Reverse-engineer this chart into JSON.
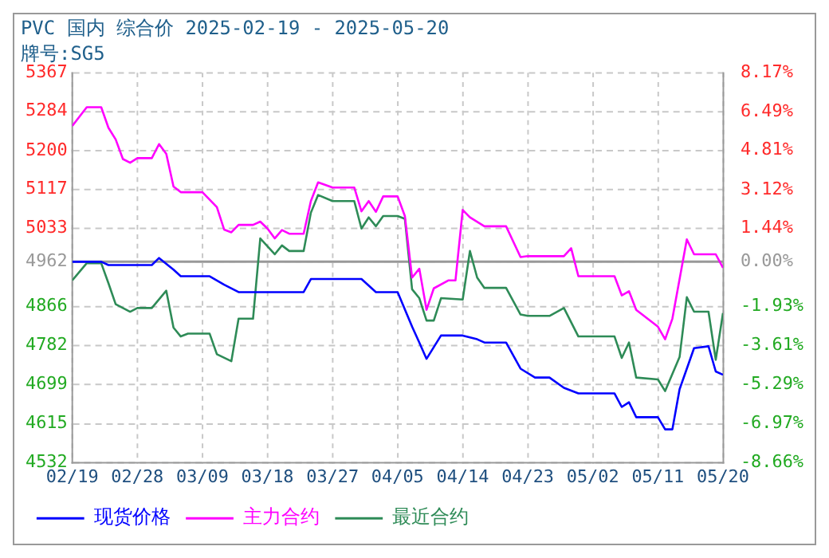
{
  "chart_data": {
    "type": "line",
    "title": "PVC 国内 综合价 2025-02-19 - 2025-05-20",
    "subtitle": "牌号:SG5",
    "xlim": [
      "2025-02-19",
      "2025-05-20"
    ],
    "xticks": [
      {
        "value": "2025-02-19",
        "label": "02/19"
      },
      {
        "value": "2025-02-28",
        "label": "02/28"
      },
      {
        "value": "2025-03-09",
        "label": "03/09"
      },
      {
        "value": "2025-03-18",
        "label": "03/18"
      },
      {
        "value": "2025-03-27",
        "label": "03/27"
      },
      {
        "value": "2025-04-05",
        "label": "04/05"
      },
      {
        "value": "2025-04-14",
        "label": "04/14"
      },
      {
        "value": "2025-04-23",
        "label": "04/23"
      },
      {
        "value": "2025-05-02",
        "label": "05/02"
      },
      {
        "value": "2025-05-11",
        "label": "05/11"
      },
      {
        "value": "2025-05-20",
        "label": "05/20"
      }
    ],
    "ylim": [
      4532,
      5367
    ],
    "yticks": [
      4532,
      4615,
      4699,
      4782,
      4866,
      4962,
      5033,
      5117,
      5200,
      5284,
      5367
    ],
    "y2lim": [
      -8.66,
      8.17
    ],
    "y2ticks": [
      {
        "value": -8.66,
        "label": "-8.66%"
      },
      {
        "value": -6.97,
        "label": "-6.97%"
      },
      {
        "value": -5.29,
        "label": "-5.29%"
      },
      {
        "value": -3.61,
        "label": "-3.61%"
      },
      {
        "value": -1.93,
        "label": "-1.93%"
      },
      {
        "value": 0,
        "label": "0.00%"
      },
      {
        "value": 1.44,
        "label": "1.44%"
      },
      {
        "value": 3.12,
        "label": "3.12%"
      },
      {
        "value": 4.81,
        "label": "4.81%"
      },
      {
        "value": 6.49,
        "label": "6.49%"
      },
      {
        "value": 8.17,
        "label": "8.17%"
      }
    ],
    "ref_lines": [
      {
        "axis": "y",
        "value": 4962,
        "color": "#999999"
      }
    ],
    "grid": true,
    "legend": "bottom left",
    "marker": "none",
    "line_style": "solid",
    "series": [
      {
        "name": "现货价格",
        "color": "#0000ff",
        "x": [
          "2025-02-19",
          "2025-02-23",
          "2025-02-24",
          "2025-03-02",
          "2025-03-03",
          "2025-03-05",
          "2025-03-06",
          "2025-03-10",
          "2025-03-12",
          "2025-03-14",
          "2025-03-23",
          "2025-03-24",
          "2025-03-31",
          "2025-04-02",
          "2025-04-05",
          "2025-04-07",
          "2025-04-08",
          "2025-04-09",
          "2025-04-11",
          "2025-04-14",
          "2025-04-16",
          "2025-04-17",
          "2025-04-20",
          "2025-04-22",
          "2025-04-24",
          "2025-04-26",
          "2025-04-28",
          "2025-04-30",
          "2025-05-05",
          "2025-05-06",
          "2025-05-07",
          "2025-05-08",
          "2025-05-11",
          "2025-05-12",
          "2025-05-13",
          "2025-05-14",
          "2025-05-16",
          "2025-05-18",
          "2025-05-19",
          "2025-05-20"
        ],
        "values": [
          4962,
          4962,
          4955,
          4955,
          4970,
          4945,
          4931,
          4931,
          4913,
          4897,
          4897,
          4925,
          4925,
          4897,
          4897,
          4823,
          4789,
          4754,
          4804,
          4804,
          4796,
          4789,
          4789,
          4733,
          4714,
          4714,
          4692,
          4680,
          4680,
          4651,
          4661,
          4629,
          4629,
          4603,
          4603,
          4689,
          4777,
          4781,
          4727,
          4720
        ]
      },
      {
        "name": "主力合约",
        "color": "#ff00ff",
        "x": [
          "2025-02-19",
          "2025-02-21",
          "2025-02-23",
          "2025-02-24",
          "2025-02-25",
          "2025-02-26",
          "2025-02-27",
          "2025-02-28",
          "2025-03-02",
          "2025-03-03",
          "2025-03-04",
          "2025-03-05",
          "2025-03-06",
          "2025-03-09",
          "2025-03-11",
          "2025-03-12",
          "2025-03-13",
          "2025-03-14",
          "2025-03-16",
          "2025-03-17",
          "2025-03-18",
          "2025-03-19",
          "2025-03-20",
          "2025-03-21",
          "2025-03-23",
          "2025-03-24",
          "2025-03-25",
          "2025-03-27",
          "2025-03-30",
          "2025-03-31",
          "2025-04-01",
          "2025-04-02",
          "2025-04-03",
          "2025-04-05",
          "2025-04-06",
          "2025-04-07",
          "2025-04-08",
          "2025-04-09",
          "2025-04-10",
          "2025-04-12",
          "2025-04-13",
          "2025-04-14",
          "2025-04-15",
          "2025-04-17",
          "2025-04-20",
          "2025-04-22",
          "2025-04-23",
          "2025-04-28",
          "2025-04-29",
          "2025-04-30",
          "2025-05-05",
          "2025-05-06",
          "2025-05-07",
          "2025-05-08",
          "2025-05-11",
          "2025-05-12",
          "2025-05-13",
          "2025-05-15",
          "2025-05-16",
          "2025-05-19",
          "2025-05-20"
        ],
        "values": [
          5253,
          5293,
          5293,
          5249,
          5224,
          5182,
          5174,
          5184,
          5184,
          5214,
          5193,
          5123,
          5111,
          5111,
          5079,
          5031,
          5025,
          5041,
          5041,
          5048,
          5033,
          5012,
          5030,
          5022,
          5022,
          5092,
          5132,
          5121,
          5121,
          5070,
          5092,
          5069,
          5102,
          5102,
          5060,
          4928,
          4947,
          4859,
          4905,
          4922,
          4922,
          5073,
          5057,
          5038,
          5038,
          4972,
          4974,
          4974,
          4991,
          4931,
          4931,
          4890,
          4899,
          4859,
          4823,
          4796,
          4840,
          5010,
          4978,
          4978,
          4949
        ]
      },
      {
        "name": "最近合约",
        "color": "#2e8b57",
        "x": [
          "2025-02-19",
          "2025-02-21",
          "2025-02-23",
          "2025-02-24",
          "2025-02-25",
          "2025-02-27",
          "2025-02-28",
          "2025-03-02",
          "2025-03-04",
          "2025-03-05",
          "2025-03-06",
          "2025-03-07",
          "2025-03-10",
          "2025-03-11",
          "2025-03-13",
          "2025-03-14",
          "2025-03-16",
          "2025-03-17",
          "2025-03-19",
          "2025-03-20",
          "2025-03-21",
          "2025-03-23",
          "2025-03-24",
          "2025-03-25",
          "2025-03-27",
          "2025-03-30",
          "2025-03-31",
          "2025-04-01",
          "2025-04-02",
          "2025-04-03",
          "2025-04-05",
          "2025-04-06",
          "2025-04-07",
          "2025-04-08",
          "2025-04-09",
          "2025-04-10",
          "2025-04-11",
          "2025-04-14",
          "2025-04-15",
          "2025-04-16",
          "2025-04-17",
          "2025-04-20",
          "2025-04-22",
          "2025-04-23",
          "2025-04-26",
          "2025-04-28",
          "2025-04-30",
          "2025-05-05",
          "2025-05-06",
          "2025-05-07",
          "2025-05-08",
          "2025-05-11",
          "2025-05-12",
          "2025-05-14",
          "2025-05-15",
          "2025-05-16",
          "2025-05-18",
          "2025-05-19",
          "2025-05-20"
        ],
        "values": [
          4922,
          4959,
          4959,
          4916,
          4871,
          4855,
          4863,
          4863,
          4900,
          4821,
          4802,
          4808,
          4808,
          4764,
          4749,
          4840,
          4840,
          5012,
          4978,
          4997,
          4985,
          4985,
          5067,
          5105,
          5092,
          5092,
          5033,
          5057,
          5038,
          5060,
          5060,
          5054,
          4903,
          4884,
          4836,
          4836,
          4884,
          4881,
          4985,
          4928,
          4906,
          4906,
          4849,
          4846,
          4846,
          4863,
          4802,
          4802,
          4756,
          4789,
          4714,
          4710,
          4685,
          4758,
          4886,
          4855,
          4855,
          4752,
          4852
        ]
      }
    ]
  }
}
